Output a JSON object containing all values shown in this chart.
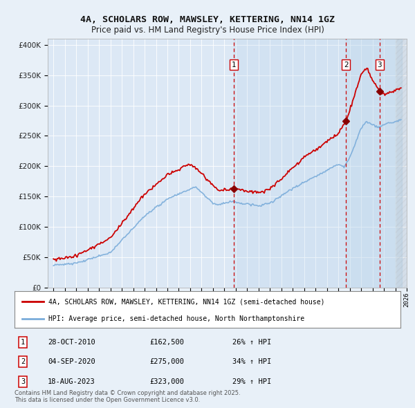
{
  "title": "4A, SCHOLARS ROW, MAWSLEY, KETTERING, NN14 1GZ",
  "subtitle": "Price paid vs. HM Land Registry's House Price Index (HPI)",
  "background_color": "#e8f0f8",
  "plot_bg_color": "#dce8f5",
  "legend_line1": "4A, SCHOLARS ROW, MAWSLEY, KETTERING, NN14 1GZ (semi-detached house)",
  "legend_line2": "HPI: Average price, semi-detached house, North Northamptonshire",
  "copyright": "Contains HM Land Registry data © Crown copyright and database right 2025.\nThis data is licensed under the Open Government Licence v3.0.",
  "sales": [
    {
      "num": 1,
      "date": "28-OCT-2010",
      "price": "£162,500",
      "change": "26% ↑ HPI",
      "year": 2010.83
    },
    {
      "num": 2,
      "date": "04-SEP-2020",
      "price": "£275,000",
      "change": "34% ↑ HPI",
      "year": 2020.67
    },
    {
      "num": 3,
      "date": "18-AUG-2023",
      "price": "£323,000",
      "change": "29% ↑ HPI",
      "year": 2023.63
    }
  ],
  "sale_points": [
    {
      "year": 2010.83,
      "price": 162500,
      "label": "1"
    },
    {
      "year": 2020.67,
      "price": 275000,
      "label": "2"
    },
    {
      "year": 2023.63,
      "price": 323000,
      "label": "3"
    }
  ],
  "ylim": [
    0,
    410000
  ],
  "xlim": [
    1994.5,
    2026.0
  ],
  "red_color": "#cc0000",
  "blue_color": "#7aacda",
  "dashed_color": "#cc0000",
  "shade_color": "#c8dff0"
}
